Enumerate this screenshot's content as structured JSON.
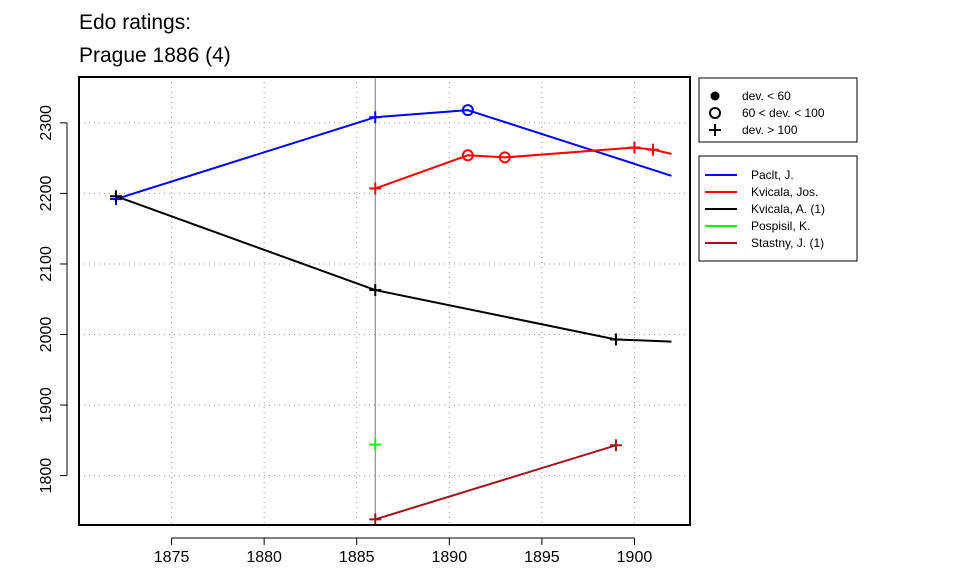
{
  "chart_data": {
    "type": "line",
    "title_lines": [
      "Edo ratings:",
      "Prague 1886 (4)"
    ],
    "xlabel": "",
    "ylabel": "",
    "xlim": [
      1870,
      1903
    ],
    "ylim": [
      1730,
      2365
    ],
    "x_ticks": [
      1875,
      1880,
      1885,
      1890,
      1895,
      1900
    ],
    "y_ticks": [
      1800,
      1900,
      2000,
      2100,
      2200,
      2300
    ],
    "grid": "dotted",
    "event_year": 1886,
    "marker_legend": [
      {
        "label": "dev. < 60",
        "marker": "filled-circle"
      },
      {
        "label": "60 < dev. < 100",
        "marker": "open-circle"
      },
      {
        "label": "dev. > 100",
        "marker": "plus"
      }
    ],
    "series": [
      {
        "name": "Paclt, J.",
        "color": "#0000ff",
        "points": [
          [
            1872,
            2192,
            "plus"
          ],
          [
            1886,
            2308,
            "plus"
          ],
          [
            1891,
            2318,
            "open-circle"
          ],
          [
            1902,
            2225,
            null
          ]
        ]
      },
      {
        "name": "Kvicala, Jos.",
        "color": "#ff0000",
        "points": [
          [
            1886,
            2207,
            "plus"
          ],
          [
            1891,
            2254,
            "open-circle"
          ],
          [
            1893,
            2251,
            "open-circle"
          ],
          [
            1900,
            2265,
            "plus"
          ],
          [
            1901,
            2262,
            "plus"
          ],
          [
            1902,
            2256,
            null
          ]
        ]
      },
      {
        "name": "Kvicala, A. (1)",
        "color": "#000000",
        "points": [
          [
            1872,
            2196,
            "plus"
          ],
          [
            1886,
            2063,
            "plus"
          ],
          [
            1899,
            1993,
            "plus"
          ],
          [
            1902,
            1990,
            null
          ]
        ]
      },
      {
        "name": "Pospisil, K.",
        "color": "#00ff00",
        "points": [
          [
            1886,
            1844,
            "plus"
          ]
        ]
      },
      {
        "name": "Stastny, J. (1)",
        "color": "#a0141e",
        "points": [
          [
            1886,
            1738,
            "plus"
          ],
          [
            1899,
            1843,
            "plus"
          ]
        ]
      }
    ]
  }
}
